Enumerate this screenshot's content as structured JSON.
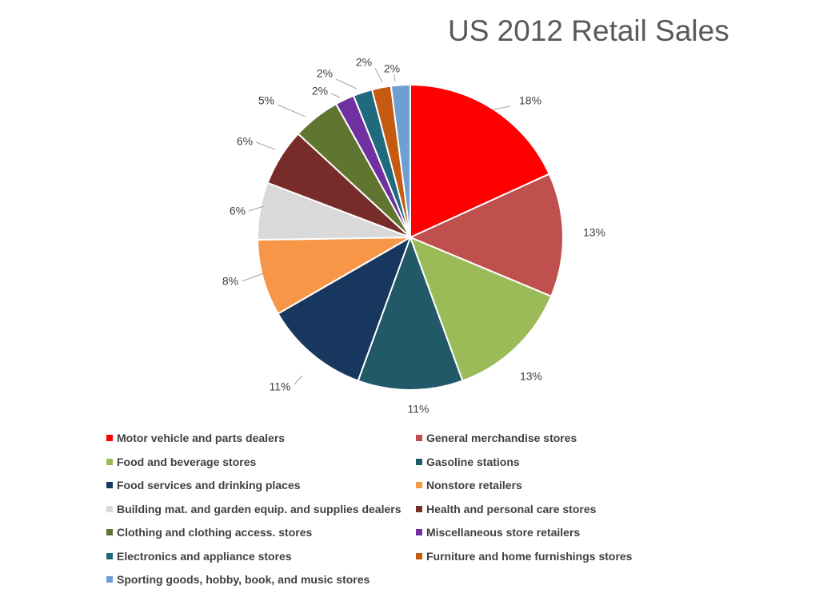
{
  "chart_data": {
    "type": "pie",
    "title": "US 2012 Retail Sales",
    "legend_position": "bottom",
    "slices": [
      {
        "label": "Motor vehicle and parts dealers",
        "value": 18,
        "value_label": "18%",
        "color": "#ff0000"
      },
      {
        "label": "General merchandise stores",
        "value": 13,
        "value_label": "13%",
        "color": "#c0504d"
      },
      {
        "label": "Food and beverage stores",
        "value": 13,
        "value_label": "13%",
        "color": "#9bbb59"
      },
      {
        "label": "Gasoline stations",
        "value": 11,
        "value_label": "11%",
        "color": "#215968"
      },
      {
        "label": "Food services and drinking places",
        "value": 11,
        "value_label": "11%",
        "color": "#17375e"
      },
      {
        "label": "Nonstore retailers",
        "value": 8,
        "value_label": "8%",
        "color": "#f79646"
      },
      {
        "label": "Building mat. and garden equip. and supplies dealers",
        "value": 6,
        "value_label": "6%",
        "color": "#d9d9d9"
      },
      {
        "label": "Health and personal care stores",
        "value": 6,
        "value_label": "6%",
        "color": "#772c2a"
      },
      {
        "label": "Clothing and clothing access. stores",
        "value": 5,
        "value_label": "5%",
        "color": "#5f7530"
      },
      {
        "label": "Miscellaneous store retailers",
        "value": 2,
        "value_label": "2%",
        "color": "#7030a0"
      },
      {
        "label": "Electronics and appliance stores",
        "value": 2,
        "value_label": "2%",
        "color": "#1f6b7d"
      },
      {
        "label": "Furniture and home furnishings stores",
        "value": 2,
        "value_label": "2%",
        "color": "#c55a11"
      },
      {
        "label": "Sporting goods, hobby, book, and music stores",
        "value": 2,
        "value_label": "2%",
        "color": "#6f9ed4"
      }
    ]
  }
}
